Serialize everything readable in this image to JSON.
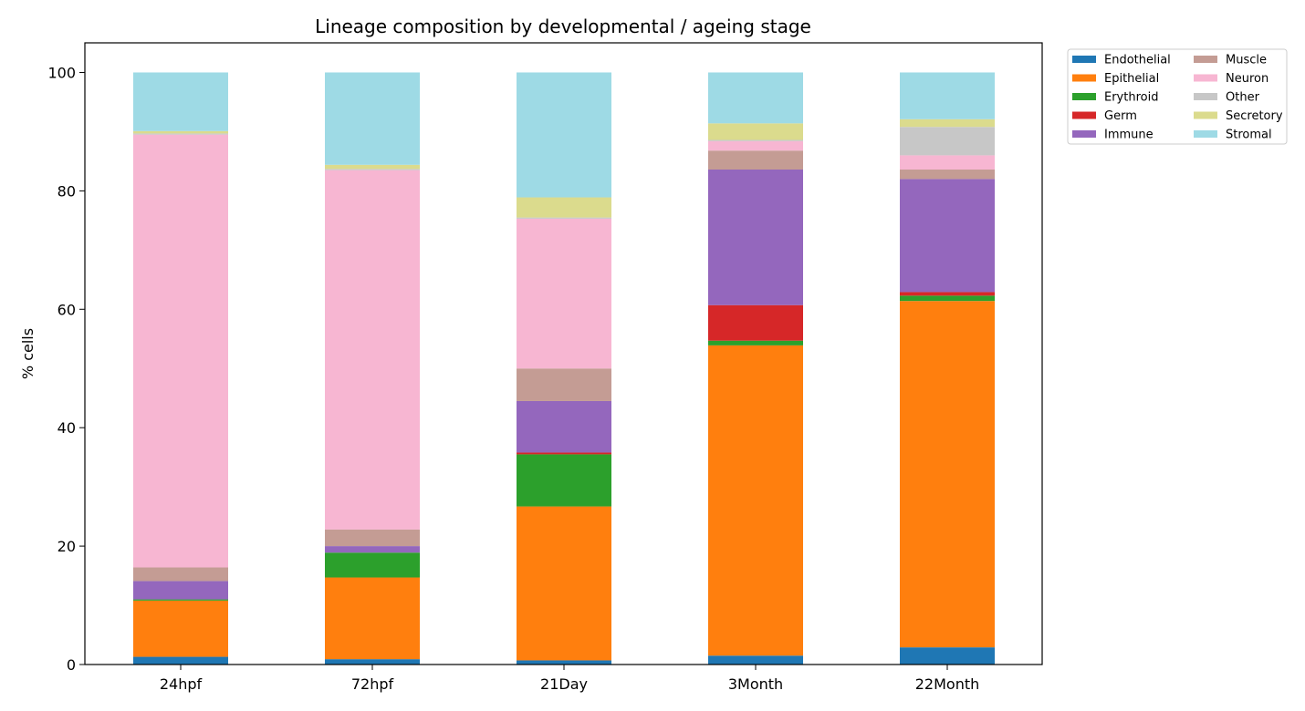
{
  "chart_data": {
    "type": "bar",
    "stacked": true,
    "title": "Lineage composition by developmental / ageing stage",
    "xlabel": "",
    "ylabel": "% cells",
    "categories": [
      "24hpf",
      "72hpf",
      "21Day",
      "3Month",
      "22Month"
    ],
    "ylim": [
      0,
      105
    ],
    "yticks": [
      "0",
      "20",
      "40",
      "60",
      "80",
      "100"
    ],
    "grid": false,
    "legend_position": "outside-top-right",
    "series": [
      {
        "name": "Endothelial",
        "color": "#1f77b4",
        "values": [
          1.3,
          0.9,
          0.7,
          1.5,
          2.9
        ]
      },
      {
        "name": "Epithelial",
        "color": "#ff7f0e",
        "values": [
          9.5,
          13.8,
          26.0,
          52.4,
          58.5
        ]
      },
      {
        "name": "Erythroid",
        "color": "#2ca02c",
        "values": [
          0.2,
          4.2,
          8.8,
          0.8,
          0.9
        ]
      },
      {
        "name": "Germ",
        "color": "#d62728",
        "values": [
          0.0,
          0.0,
          0.3,
          6.0,
          0.6
        ]
      },
      {
        "name": "Immune",
        "color": "#9467bd",
        "values": [
          3.1,
          1.1,
          8.7,
          22.9,
          19.1
        ]
      },
      {
        "name": "Muscle",
        "color": "#c49c94",
        "values": [
          2.3,
          2.8,
          5.5,
          3.2,
          1.6
        ]
      },
      {
        "name": "Neuron",
        "color": "#f7b6d2",
        "values": [
          73.1,
          60.7,
          25.3,
          1.6,
          2.4
        ]
      },
      {
        "name": "Other",
        "color": "#c7c7c7",
        "values": [
          0.2,
          0.2,
          0.2,
          0.2,
          4.8
        ]
      },
      {
        "name": "Secretory",
        "color": "#dbdb8d",
        "values": [
          0.4,
          0.7,
          3.4,
          2.8,
          1.3
        ]
      },
      {
        "name": "Stromal",
        "color": "#9edae5",
        "values": [
          9.9,
          15.6,
          21.1,
          8.6,
          7.9
        ]
      }
    ]
  }
}
